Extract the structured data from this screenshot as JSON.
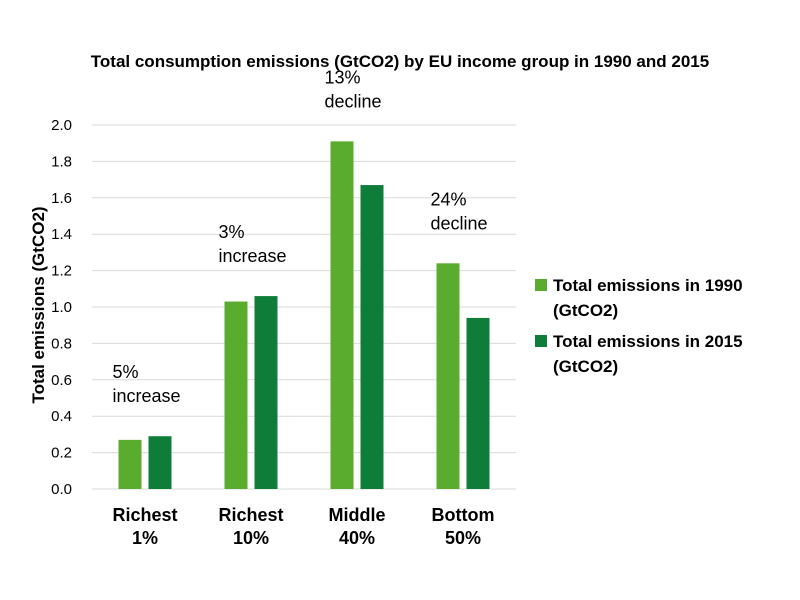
{
  "chart_data": {
    "type": "bar",
    "title": "Total consumption emissions (GtCO2) by EU income group in 1990 and 2015",
    "ylabel": "Total emissions (GtCO2)",
    "xlabel": "",
    "ylim": [
      0,
      2.0
    ],
    "yticks": [
      "0.0",
      "0.2",
      "0.4",
      "0.6",
      "0.8",
      "1.0",
      "1.2",
      "1.4",
      "1.6",
      "1.8",
      "2.0"
    ],
    "grid": true,
    "legend_position": "right",
    "categories": [
      [
        "Richest",
        "1%"
      ],
      [
        "Richest",
        "10%"
      ],
      [
        "Middle",
        "40%"
      ],
      [
        "Bottom",
        "50%"
      ]
    ],
    "series": [
      {
        "name": [
          "Total emissions in 1990",
          "(GtCO2)"
        ],
        "color": "#5aac2e",
        "values": [
          0.27,
          1.03,
          1.91,
          1.24
        ]
      },
      {
        "name": [
          "Total emissions in 2015",
          "(GtCO2)"
        ],
        "color": "#0f7d3a",
        "values": [
          0.29,
          1.06,
          1.67,
          0.94
        ]
      }
    ],
    "annotations": [
      [
        "5%",
        "increase"
      ],
      [
        "3%",
        "increase"
      ],
      [
        "13%",
        "decline"
      ],
      [
        "24%",
        "decline"
      ]
    ]
  }
}
